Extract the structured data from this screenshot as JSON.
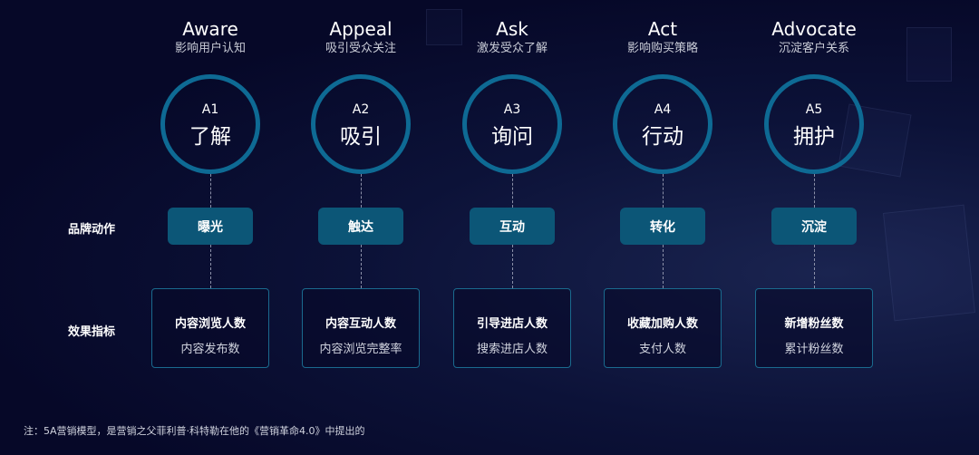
{
  "row_labels": {
    "action": "品牌动作",
    "metrics": "效果指标"
  },
  "stages": [
    {
      "en": "Aware",
      "cn": "影响用户认知",
      "code": "A1",
      "title": "了解",
      "action": "曝光",
      "metric1": "内容浏览人数",
      "metric2": "内容发布数"
    },
    {
      "en": "Appeal",
      "cn": "吸引受众关注",
      "code": "A2",
      "title": "吸引",
      "action": "触达",
      "metric1": "内容互动人数",
      "metric2": "内容浏览完整率"
    },
    {
      "en": "Ask",
      "cn": "激发受众了解",
      "code": "A3",
      "title": "询问",
      "action": "互动",
      "metric1": "引导进店人数",
      "metric2": "搜索进店人数"
    },
    {
      "en": "Act",
      "cn": "影响购买策略",
      "code": "A4",
      "title": "行动",
      "action": "转化",
      "metric1": "收藏加购人数",
      "metric2": "支付人数"
    },
    {
      "en": "Advocate",
      "cn": "沉淀客户关系",
      "code": "A5",
      "title": "拥护",
      "action": "沉淀",
      "metric1": "新增粉丝数",
      "metric2": "累计粉丝数"
    }
  ],
  "note": "注：5A营销模型，是营销之父菲利普·科特勒在他的《营销革命4.0》中提出的",
  "colors": {
    "circle": "#0e6a94",
    "pill": "#0c5677",
    "background": "#060828"
  }
}
